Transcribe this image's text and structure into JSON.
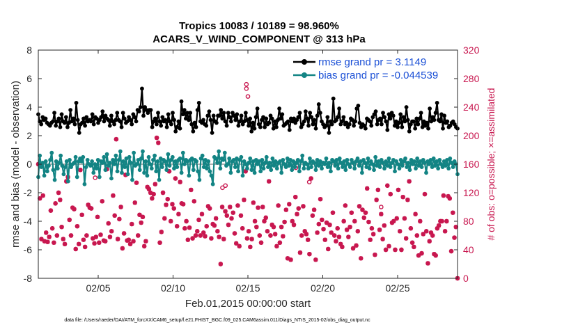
{
  "chart_data": {
    "type": "line",
    "title": "Tropics 10083 / 10189 = 98.960%",
    "subtitle": "ACARS_V_WIND_COMPONENT @ 313 hPa",
    "xlabel": "Feb.01,2015 00:00:00 start",
    "ylabel": "rmse and bias (model - observation)",
    "y2label": "# of obs: o=possible; ×=assimilated",
    "footer": "data file: /Users/raeder/DAI/ATM_forcXX/CAM6_setup/f.e21.FHIST_BGC.f09_025.CAM6assim.011/Diags_NTrS_2015-02/obs_diag_output.nc",
    "xlim": [
      1,
      29
    ],
    "xticks": [
      5,
      10,
      15,
      20,
      25
    ],
    "xtick_labels": [
      "02/05",
      "02/10",
      "02/15",
      "02/20",
      "02/25"
    ],
    "ylim": [
      -8,
      8
    ],
    "yticks": [
      -8,
      -6,
      -4,
      -2,
      0,
      2,
      4,
      6,
      8
    ],
    "ytick_labels": [
      "-8",
      "-6",
      "-4",
      "-2",
      "0",
      "2",
      "4",
      "6",
      "8"
    ],
    "y2lim": [
      0,
      320
    ],
    "y2ticks": [
      0,
      40,
      80,
      120,
      160,
      200,
      240,
      280,
      320
    ],
    "y2tick_labels": [
      "0",
      "40",
      "80",
      "120",
      "160",
      "200",
      "240",
      "280",
      "320"
    ],
    "colors": {
      "rmse": "#000000",
      "bias": "#138484",
      "obs": "#c8174f",
      "legend_text": "#1a4fd6",
      "zero_line": "#b0b0b0"
    },
    "series": [
      {
        "name": "rmse grand pr = 3.1149",
        "values": [
          3.5,
          3.0,
          2.8,
          3.3,
          3.1,
          3.2,
          2.9,
          2.8,
          2.7,
          2.9,
          3.0,
          3.6,
          2.7,
          3.0,
          3.2,
          2.6,
          3.5,
          3.0,
          2.9,
          3.3,
          2.6,
          2.9,
          3.8,
          3.0,
          3.2,
          2.8,
          4.3,
          3.1,
          2.2,
          2.8,
          2.9,
          3.2,
          2.7,
          3.3,
          3.0,
          3.1,
          3.0,
          3.5,
          2.8,
          3.3,
          3.2,
          2.9,
          3.1,
          3.3,
          3.7,
          3.0,
          3.4,
          3.2,
          3.1,
          2.7,
          3.4,
          3.0,
          2.8,
          3.1,
          3.6,
          3.1,
          3.0,
          2.6,
          3.6,
          3.2,
          2.9,
          3.0,
          3.3,
          3.1,
          2.8,
          3.5,
          3.3,
          3.0,
          3.8,
          3.7,
          4.0,
          5.3,
          3.4,
          4.0,
          3.8,
          3.6,
          3.8,
          3.8,
          2.6,
          3.0,
          3.2,
          2.8,
          3.6,
          3.0,
          2.7,
          3.3,
          3.0,
          3.1,
          2.6,
          3.5,
          3.0,
          2.8,
          3.6,
          3.1,
          2.3,
          2.6,
          3.0,
          2.5,
          4.4,
          3.5,
          3.8,
          3.2,
          3.6,
          3.1,
          3.6,
          2.8,
          2.3,
          2.9,
          2.6,
          3.8,
          4.3,
          3.0,
          2.9,
          3.1,
          2.8,
          2.7,
          3.4,
          3.7,
          3.1,
          2.2,
          3.4,
          3.0,
          2.9,
          3.4,
          3.4,
          3.8,
          3.2,
          3.6,
          3.0,
          2.7,
          3.6,
          3.3,
          3.0,
          3.6,
          3.4,
          3.1,
          3.5,
          2.7,
          3.0,
          3.4,
          2.8,
          3.0,
          3.6,
          3.1,
          2.7,
          3.2,
          2.3,
          2.9,
          2.5,
          3.3,
          3.9,
          2.8,
          2.6,
          3.1,
          3.3,
          2.6,
          3.2,
          2.8,
          2.9,
          3.4,
          3.2,
          2.5,
          3.0,
          2.6,
          3.1,
          3.9,
          3.2,
          3.5,
          2.7,
          2.8,
          2.9,
          3.0,
          2.4,
          3.2,
          3.0,
          3.2,
          2.9,
          3.1,
          3.3,
          3.6,
          2.6,
          2.8,
          3.0,
          3.7,
          3.2,
          2.7,
          3.6,
          3.3,
          2.8,
          3.1,
          2.5,
          3.4,
          4.2,
          3.6,
          3.0,
          2.8,
          2.6,
          2.7,
          3.3,
          2.2,
          3.0,
          2.8,
          4.6,
          3.0,
          3.1,
          3.3,
          3.9,
          2.8,
          3.0,
          3.3,
          2.8,
          2.9,
          2.6,
          2.8,
          3.2,
          3.1,
          2.7,
          3.0,
          3.9,
          4.1,
          2.9,
          2.6,
          2.8,
          2.7,
          2.5,
          3.2,
          3.1,
          3.0,
          2.7,
          3.3,
          3.5,
          3.7,
          2.8,
          3.1,
          3.2,
          2.8,
          3.6,
          3.3,
          3.0,
          2.4,
          3.5,
          3.2,
          3.6,
          3.4,
          2.7,
          3.0,
          2.6,
          2.9,
          3.5,
          2.6,
          3.3,
          3.0,
          4.0,
          3.1,
          2.3,
          2.8,
          3.0,
          3.0,
          2.5,
          3.2,
          2.8,
          3.2,
          3.6,
          2.6,
          3.0,
          2.7,
          2.9,
          2.5,
          3.9,
          3.0,
          3.3,
          3.1,
          3.6,
          4.3,
          3.1,
          3.0,
          3.5,
          2.5,
          3.4,
          2.9,
          3.0,
          2.6,
          2.7,
          2.9,
          3.0,
          2.8,
          2.6,
          2.5
        ]
      },
      {
        "name": "bias grand pr = -0.044539",
        "values": [
          -0.9,
          0.6,
          -0.2,
          0.1,
          -0.8,
          0.2,
          -0.5,
          -0.1,
          0.3,
          0.8,
          -0.4,
          -1.1,
          0.2,
          -0.3,
          0.1,
          0.6,
          -0.1,
          -0.7,
          -0.2,
          0.2,
          -1.2,
          0.3,
          -0.2,
          0.0,
          0.1,
          0.5,
          -0.9,
          0.2,
          0.4,
          0.2,
          0.5,
          -1.4,
          -0.2,
          0.3,
          0.0,
          -0.1,
          0.2,
          -0.6,
          0.0,
          -0.3,
          0.3,
          -0.9,
          0.2,
          0.1,
          0.5,
          -0.4,
          0.7,
          -0.1,
          0.1,
          -1.0,
          0.3,
          0.0,
          0.6,
          -0.5,
          0.3,
          0.9,
          -0.6,
          0.2,
          -0.2,
          0.4,
          -0.7,
          0.5,
          0.1,
          -1.1,
          0.8,
          -0.1,
          0.0,
          0.3,
          -0.4,
          0.4,
          0.9,
          -0.6,
          0.2,
          -0.8,
          0.5,
          0.0,
          -0.3,
          0.3,
          0.6,
          -0.5,
          0.2,
          -1.1,
          0.4,
          -0.2,
          0.3,
          0.2,
          -0.4,
          0.7,
          -0.1,
          0.3,
          0.5,
          -0.3,
          0.2,
          -0.2,
          0.3,
          0.4,
          -0.6,
          0.8,
          0.0,
          0.3,
          0.2,
          -0.8,
          0.3,
          0.4,
          -0.4,
          0.3,
          0.2,
          -0.5,
          -1.1,
          0.4,
          0.6,
          -0.2,
          0.3,
          -0.3,
          0.2,
          -0.5,
          -0.8,
          -1.4,
          0.5,
          0.4,
          0.1,
          0.9,
          -0.3,
          0.4,
          0.3,
          0.8,
          -0.1,
          0.0,
          0.4,
          -0.6,
          0.2,
          0.3,
          -0.2,
          0.4,
          -0.5,
          0.3,
          0.5,
          -0.8,
          0.2,
          0.0,
          -0.3,
          0.1,
          0.4,
          -0.4,
          0.2,
          -0.6,
          0.3,
          0.0,
          0.2,
          -0.5,
          0.3,
          -0.3,
          0.1,
          0.5,
          -0.2,
          0.1,
          -0.4,
          0.4,
          -0.1,
          0.2,
          -0.3,
          0.1,
          0.2,
          -0.6,
          0.3,
          0.0,
          -0.2,
          0.4,
          -0.1,
          0.3,
          -0.4,
          0.2,
          -0.2,
          0.1,
          0.3,
          -0.5,
          0.2,
          0.6,
          -0.3,
          0.1,
          0.0,
          -0.3,
          0.4,
          -0.2,
          0.2,
          0.1,
          -0.4,
          0.3,
          -0.1,
          0.2,
          -0.3,
          0.1,
          0.0,
          0.4,
          -0.2,
          0.1,
          -0.5,
          0.3,
          0.2,
          -0.1,
          0.3,
          -0.3,
          0.4,
          0.1,
          -0.2,
          0.2,
          -0.4,
          0.3,
          0.0,
          -0.2,
          0.3,
          0.1,
          -0.3,
          0.2,
          0.4,
          -0.1,
          0.2,
          -0.6,
          0.3,
          0.1,
          -0.2,
          0.4,
          -0.3,
          0.2,
          0.0,
          -0.4,
          0.5,
          -0.1,
          0.2,
          -0.2,
          0.3,
          0.1,
          -0.3,
          0.2,
          -0.1,
          0.4,
          -0.2,
          0.1,
          0.3,
          -0.5,
          0.2,
          0.0,
          -0.3,
          0.3,
          -0.1,
          0.2,
          0.4,
          -0.2,
          0.1,
          -0.4,
          0.3,
          0.0,
          0.2,
          -0.3,
          0.4,
          -0.1,
          0.2,
          -0.2,
          0.3,
          0.1,
          -0.6,
          0.2,
          0.0,
          0.3,
          -0.2,
          0.4,
          -0.1,
          0.2,
          -0.3,
          0.3,
          0.0,
          -0.2,
          0.2,
          -0.1,
          0.3,
          -0.3,
          0.4,
          0.1,
          -0.2,
          0.2,
          0.0,
          -0.7
        ]
      }
    ],
    "obs_counts": [
      160,
      112,
      55,
      116,
      52,
      64,
      51,
      58,
      95,
      70,
      50,
      105,
      60,
      120,
      110,
      72,
      55,
      48,
      136,
      142,
      82,
      60,
      99,
      97,
      41,
      73,
      48,
      152,
      89,
      54,
      44,
      60,
      103,
      99,
      98,
      56,
      49,
      58,
      86,
      50,
      61,
      108,
      53,
      52,
      153,
      77,
      58,
      66,
      116,
      88,
      195,
      55,
      83,
      100,
      42,
      63,
      145,
      53,
      54,
      48,
      76,
      52,
      106,
      134,
      60,
      89,
      78,
      86,
      45,
      52,
      128,
      125,
      120,
      112,
      118,
      132,
      197,
      190,
      50,
      65,
      120,
      84,
      103,
      111,
      150,
      80,
      104,
      98,
      140,
      73,
      90,
      135,
      105,
      104,
      70,
      80,
      54,
      71,
      124,
      56,
      108,
      60,
      66,
      82,
      60,
      90,
      64,
      59,
      73,
      101,
      98,
      56,
      76,
      74,
      84,
      66,
      58,
      20,
      100,
      55,
      94,
      88,
      75,
      100,
      84,
      92,
      63,
      49,
      102,
      45,
      88,
      70,
      110,
      150,
      56,
      66,
      44,
      55,
      106,
      80,
      72,
      99,
      60,
      50,
      100,
      80,
      85,
      66,
      136,
      60,
      75,
      72,
      62,
      45,
      102,
      50,
      72,
      59,
      79,
      96,
      28,
      104,
      26,
      80,
      75,
      114,
      90,
      98,
      36,
      60,
      101,
      66,
      62,
      54,
      34,
      140,
      88,
      96,
      26,
      64,
      76,
      111,
      82,
      69,
      54,
      78,
      41,
      75,
      64,
      92,
      60,
      52,
      70,
      58,
      48,
      44,
      80,
      102,
      68,
      58,
      72,
      92,
      42,
      80,
      46,
      66,
      101,
      28,
      96,
      85,
      92,
      126,
      79,
      54,
      70,
      62,
      33,
      110,
      124,
      68,
      90,
      55,
      74,
      40,
      130,
      45,
      118,
      78,
      80,
      40,
      84,
      124,
      66,
      40,
      114,
      84,
      56,
      110,
      136,
      70,
      50,
      44,
      90,
      60,
      32,
      80,
      35,
      62,
      118,
      66,
      21,
      52,
      64,
      60,
      34,
      32,
      70,
      74,
      80,
      80,
      116,
      66,
      80,
      115,
      112,
      38,
      92,
      57,
      72,
      0
    ],
    "obs_possible_extra": [
      [
        4.8,
        141
      ],
      [
        13.3,
        127
      ],
      [
        13.5,
        130
      ],
      [
        14.9,
        272
      ],
      [
        14.9,
        266
      ],
      [
        15.0,
        255
      ],
      [
        18.2,
        155
      ],
      [
        19.1,
        135
      ],
      [
        23.9,
        100
      ]
    ]
  }
}
